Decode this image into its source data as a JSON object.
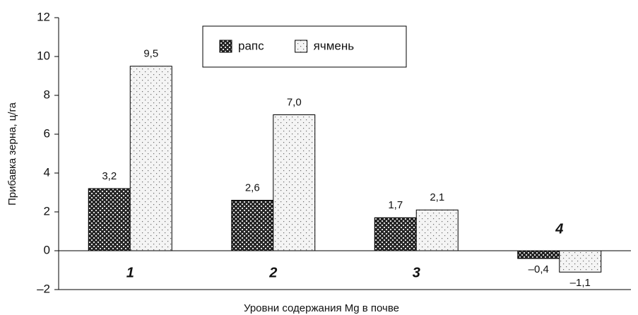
{
  "chart_data": {
    "type": "bar",
    "x_label": "Уровни содержания Mg в почве",
    "y_label": "Прибавка зерна, ц/га",
    "categories": [
      "1",
      "2",
      "3",
      "4"
    ],
    "series": [
      {
        "name": "рапс",
        "color": "#262626",
        "values": [
          3.2,
          2.6,
          1.7,
          -0.4
        ],
        "value_labels": [
          "3,2",
          "2,6",
          "1,7",
          "–0,4"
        ]
      },
      {
        "name": "ячмень",
        "color": "#f4f4f4",
        "values": [
          9.5,
          7.0,
          2.1,
          -1.1
        ],
        "value_labels": [
          "9,5",
          "7,0",
          "2,1",
          "–1,1"
        ]
      }
    ],
    "ylim": [
      -2,
      12
    ],
    "yticks": [
      {
        "value": -2,
        "label": "–2"
      },
      0,
      2,
      4,
      6,
      8,
      10,
      12
    ],
    "legend": "top"
  }
}
